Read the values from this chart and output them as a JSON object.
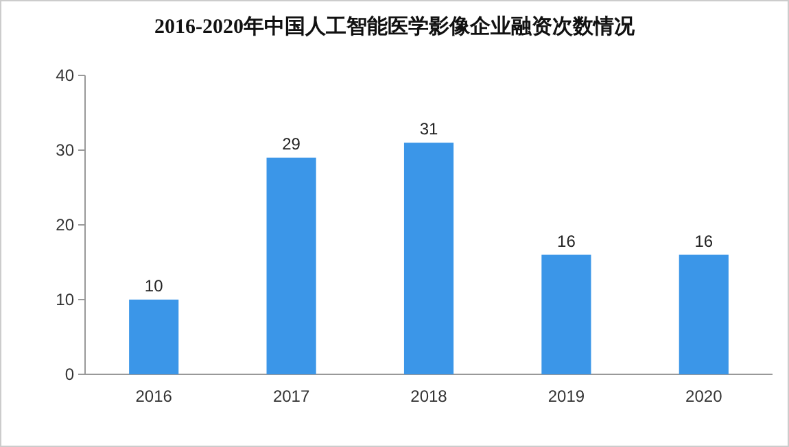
{
  "chart_data": {
    "type": "bar",
    "title": "2016-2020年中国人工智能医学影像企业融资次数情况",
    "categories": [
      "2016",
      "2017",
      "2018",
      "2019",
      "2020"
    ],
    "values": [
      10,
      29,
      31,
      16,
      16
    ],
    "color": "#3b96e8",
    "ylim": [
      0,
      40
    ],
    "yticks": [
      0,
      10,
      20,
      30,
      40
    ],
    "data_labels": true
  }
}
